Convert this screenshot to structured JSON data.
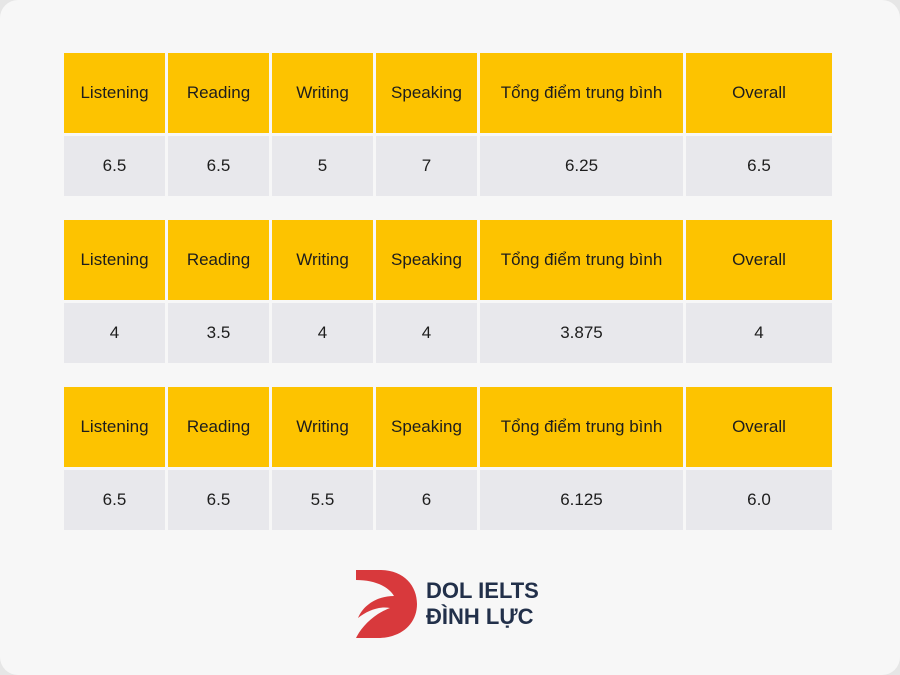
{
  "tables": [
    {
      "headers": [
        "Listening",
        "Reading",
        "Writing",
        "Speaking",
        "Tổng điểm trung bình",
        "Overall"
      ],
      "values": [
        "6.5",
        "6.5",
        "5",
        "7",
        "6.25",
        "6.5"
      ]
    },
    {
      "headers": [
        "Listening",
        "Reading",
        "Writing",
        "Speaking",
        "Tổng điểm trung bình",
        "Overall"
      ],
      "values": [
        "4",
        "3.5",
        "4",
        "4",
        "3.875",
        "4"
      ]
    },
    {
      "headers": [
        "Listening",
        "Reading",
        "Writing",
        "Speaking",
        "Tổng điểm trung bình",
        "Overall"
      ],
      "values": [
        "6.5",
        "6.5",
        "5.5",
        "6",
        "6.125",
        "6.0"
      ]
    }
  ],
  "logo": {
    "line1": "DOL IELTS",
    "line2": "ĐÌNH LỰC",
    "icon": "dol-logo-icon"
  },
  "colors": {
    "header_bg": "#fdc300",
    "value_bg": "#e8e8ec",
    "logo_red": "#d8393c",
    "logo_text": "#22304a"
  }
}
